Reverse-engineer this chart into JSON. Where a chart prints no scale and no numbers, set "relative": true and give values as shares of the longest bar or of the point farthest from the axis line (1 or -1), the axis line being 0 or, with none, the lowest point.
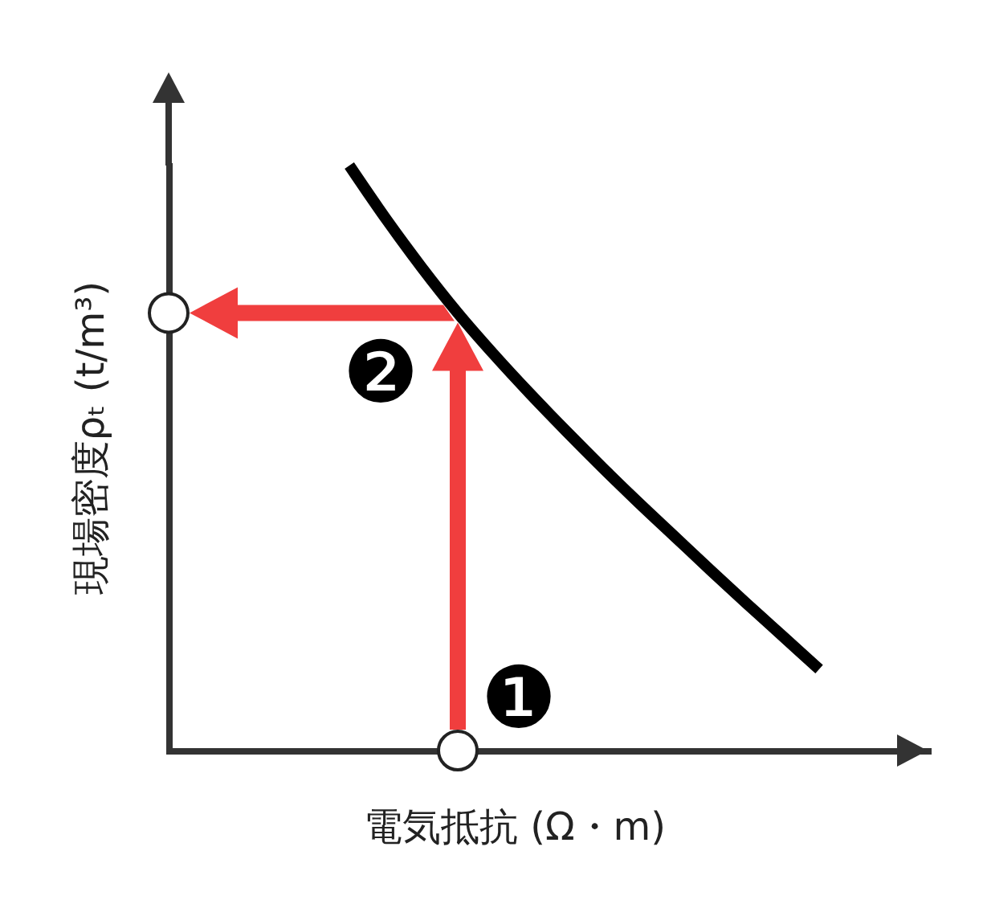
{
  "chart_data": {
    "type": "line",
    "relative": true,
    "xlabel": "電気抵抗 (Ω・m)",
    "ylabel": "現場密度ρₜ (t/m³)",
    "categories": [
      null,
      null,
      null,
      null,
      null,
      null,
      null,
      null,
      null,
      null,
      null,
      null,
      null,
      null,
      null,
      null,
      null,
      null,
      null,
      null,
      null,
      null
    ],
    "series": [
      {
        "color": "#000000",
        "values": [
          null,
          null,
          null,
          null,
          null,
          1.0,
          0.91,
          0.826,
          0.748,
          0.677,
          0.61,
          0.546,
          0.484,
          0.424,
          0.366,
          0.308,
          0.251,
          0.195,
          0.139,
          null,
          null,
          null
        ]
      }
    ],
    "annotations": [
      "❶",
      "❷"
    ]
  }
}
